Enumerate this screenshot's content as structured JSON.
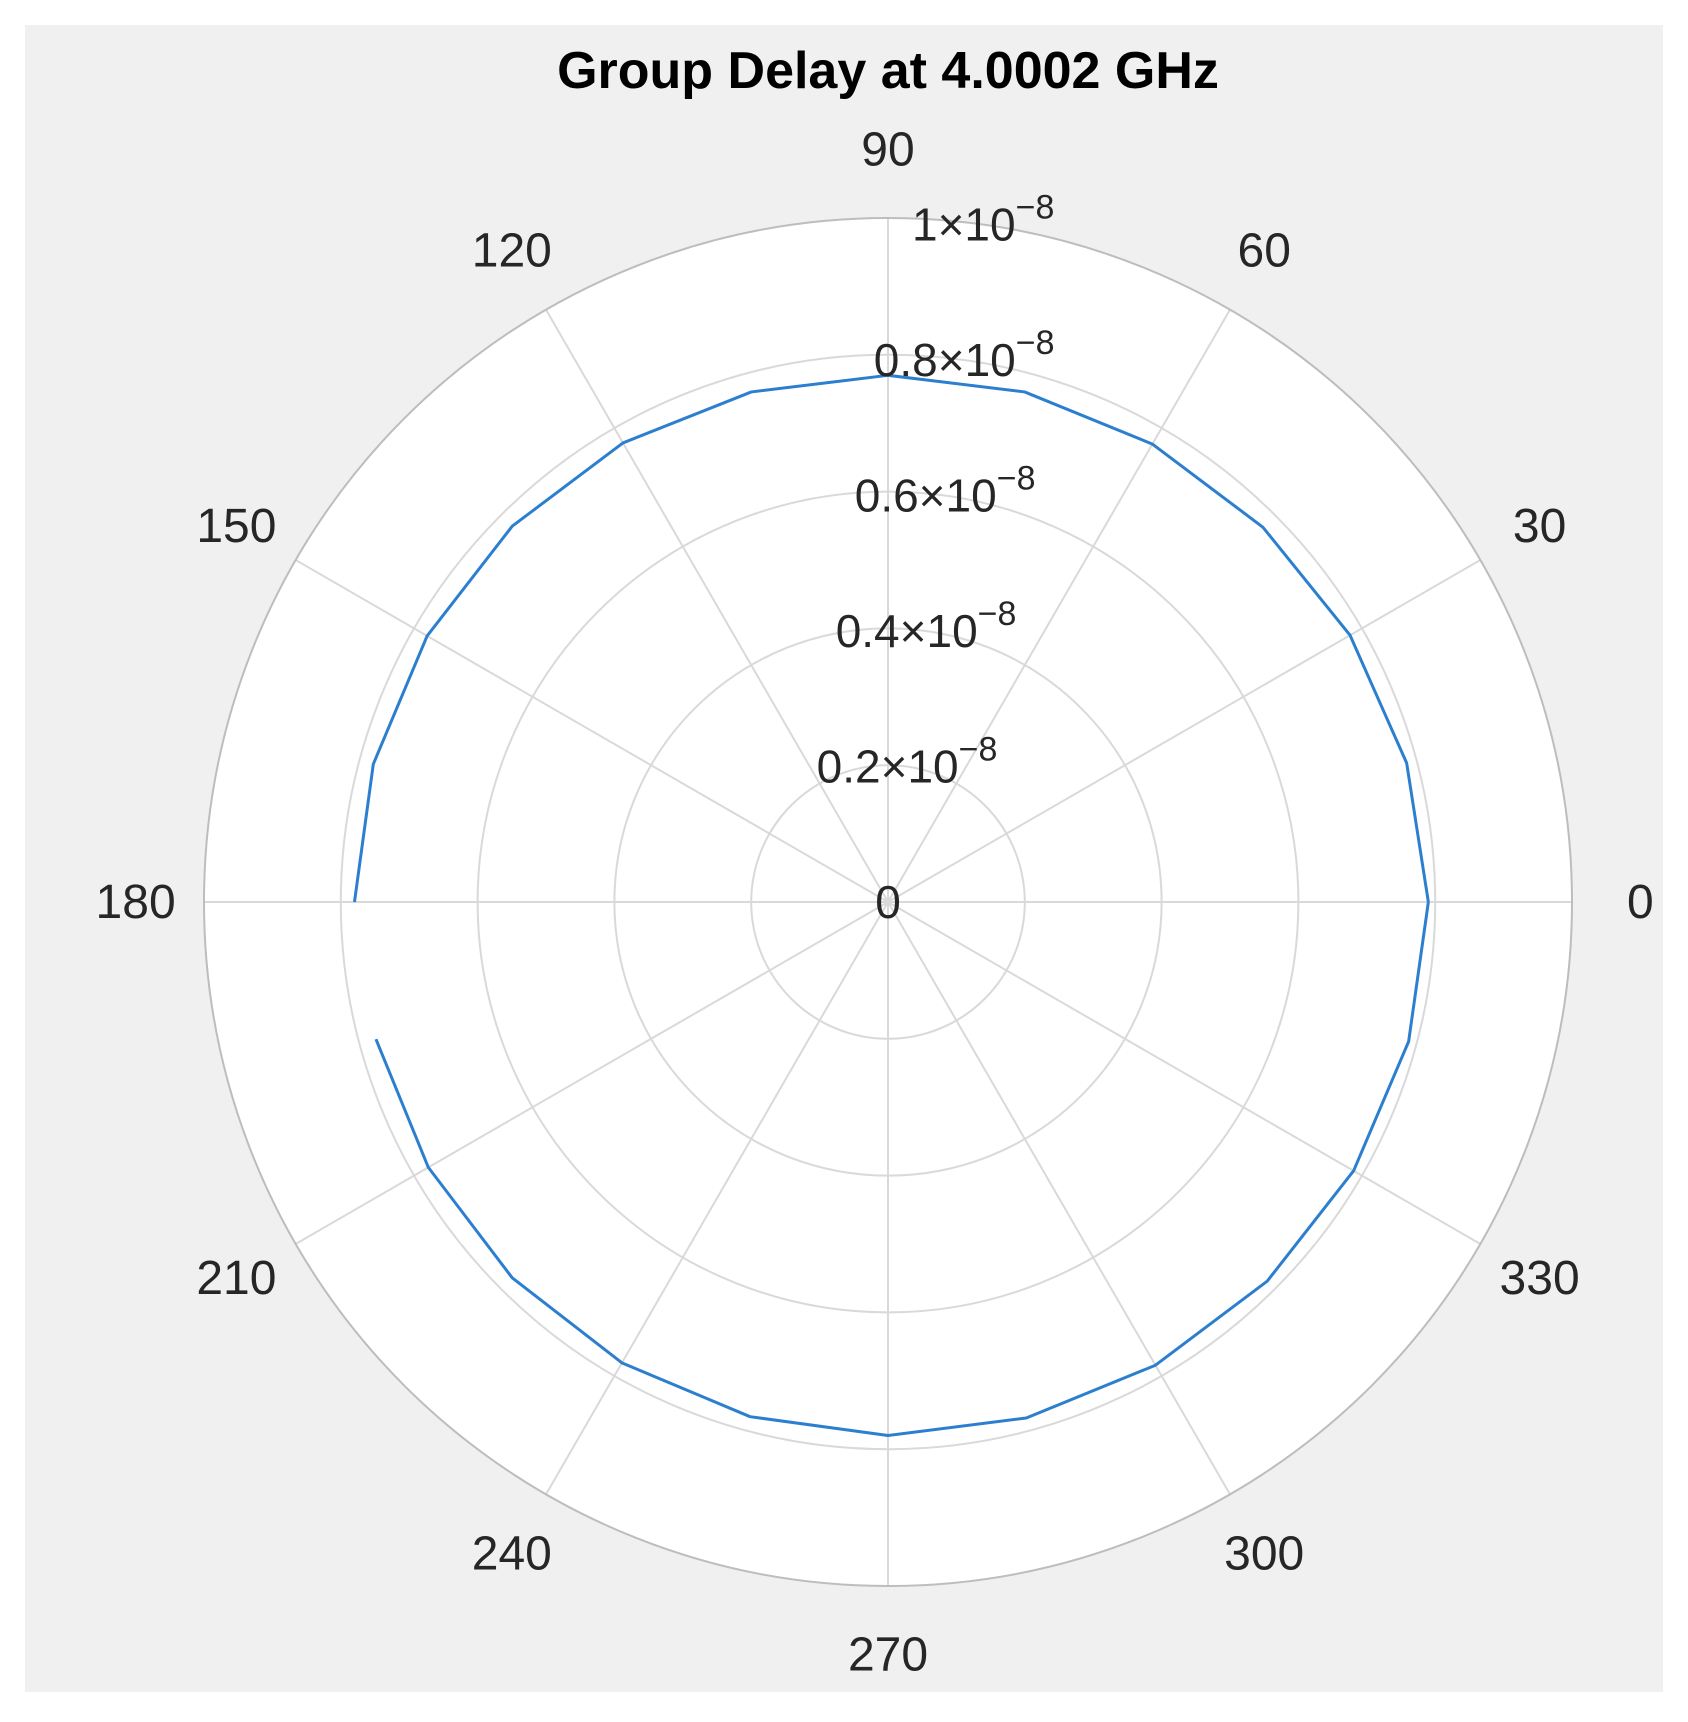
{
  "chart_data": {
    "type": "polar-line",
    "title": "Group Delay at 4.0002 GHz",
    "theta_unit": "degrees",
    "theta_ticks": [
      0,
      30,
      60,
      90,
      120,
      150,
      180,
      210,
      240,
      270,
      300,
      330
    ],
    "theta_tick_labels": [
      "0",
      "30",
      "60",
      "90",
      "120",
      "150",
      "180",
      "210",
      "240",
      "270",
      "300",
      "330"
    ],
    "r_lim": [
      0,
      1e-08
    ],
    "r_ticks": [
      0,
      2e-09,
      4e-09,
      6e-09,
      8e-09,
      1e-08
    ],
    "r_tick_labels": [
      {
        "mantissa": "0",
        "exponent": ""
      },
      {
        "mantissa": "0.2",
        "exponent": "−8"
      },
      {
        "mantissa": "0.4",
        "exponent": "−8"
      },
      {
        "mantissa": "0.6",
        "exponent": "−8"
      },
      {
        "mantissa": "0.8",
        "exponent": "−8"
      },
      {
        "mantissa": "1",
        "exponent": "−8"
      }
    ],
    "grid": true,
    "series": [
      {
        "color": "#2c7fce",
        "theta": [
          0,
          15,
          30,
          45,
          60,
          75,
          90,
          105,
          120,
          135,
          150,
          165,
          180,
          null,
          195,
          210,
          225,
          240,
          255,
          270,
          285,
          300,
          315,
          330,
          345,
          360
        ],
        "r": [
          7.9e-09,
          7.85e-09,
          7.8e-09,
          7.75e-09,
          7.73e-09,
          7.72e-09,
          7.7e-09,
          7.72e-09,
          7.75e-09,
          7.77e-09,
          7.78e-09,
          7.79e-09,
          7.8e-09,
          null,
          7.75e-09,
          7.76e-09,
          7.77e-09,
          7.78e-09,
          7.79e-09,
          7.8e-09,
          7.81e-09,
          7.82e-09,
          7.84e-09,
          7.86e-09,
          7.88e-09,
          7.9e-09
        ]
      }
    ]
  },
  "colors": {
    "figure_background": "#f0f0f0",
    "axes_background": "#ffffff",
    "grid": "#d9d9d9",
    "outer_ring": "#bdbdbd",
    "text": "#262626",
    "line": "#2c7fce"
  }
}
